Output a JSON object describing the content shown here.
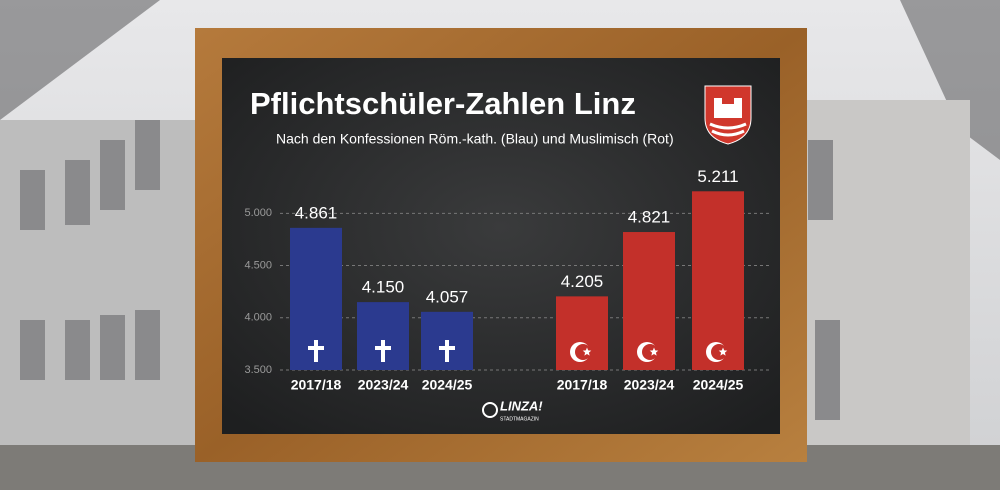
{
  "chart_data": {
    "type": "bar",
    "title": "Pflichtschüler-Zahlen Linz",
    "subtitle": "Nach den Konfessionen Röm.-kath. (Blau) und Muslimisch (Rot)",
    "categories": [
      "2017/18",
      "2023/24",
      "2024/25",
      "2017/18",
      "2023/24",
      "2024/25"
    ],
    "values": [
      4861,
      4150,
      4057,
      4205,
      4821,
      5211
    ],
    "value_labels": [
      "4.861",
      "4.150",
      "4.057",
      "4.205",
      "4.821",
      "5.211"
    ],
    "colors": [
      "#2b3a8f",
      "#2b3a8f",
      "#2b3a8f",
      "#c3302a",
      "#c3302a",
      "#c3302a"
    ],
    "ylim": [
      3500,
      5300
    ],
    "yticks": [
      {
        "value": 3500,
        "label": "3.500"
      },
      {
        "value": 4000,
        "label": "4.000"
      },
      {
        "value": 4500,
        "label": "4.500"
      },
      {
        "value": 5000,
        "label": "5.000"
      }
    ],
    "grid": true,
    "logo": "LINZA!",
    "logo_subtitle": "STADTMAGAZIN"
  }
}
